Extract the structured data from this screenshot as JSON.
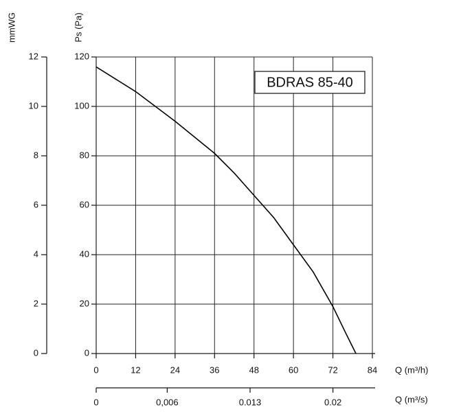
{
  "chart_data": {
    "type": "line",
    "x_label": "Q (m³/h)",
    "y_label": "Ps (Pa)",
    "y2_label": "mmWG",
    "x2_label": "Q (m³/s)",
    "x": [
      0,
      6,
      12,
      18,
      24,
      30,
      36,
      42,
      48,
      54,
      60,
      66,
      72,
      76,
      79
    ],
    "series": [
      {
        "name": "BDRAS 85-40",
        "color": "#000000",
        "values": [
          116,
          111,
          106,
          100,
          94,
          87.5,
          81,
          73,
          64,
          55,
          44,
          33,
          19,
          8,
          0
        ]
      }
    ],
    "xlim": [
      0,
      84
    ],
    "xticks": [
      0,
      12,
      24,
      36,
      48,
      60,
      72,
      84
    ],
    "ylim": [
      0,
      120
    ],
    "yticks": [
      0,
      20,
      40,
      60,
      80,
      100,
      120
    ],
    "y2lim": [
      0,
      12
    ],
    "y2ticks": [
      0,
      2,
      4,
      6,
      8,
      10,
      12
    ],
    "x2lim": [
      0,
      0.02333
    ],
    "x2ticks": [
      0,
      {
        "value": 0.006,
        "label": "0,006"
      },
      0.013,
      0.02
    ],
    "grid": true
  }
}
